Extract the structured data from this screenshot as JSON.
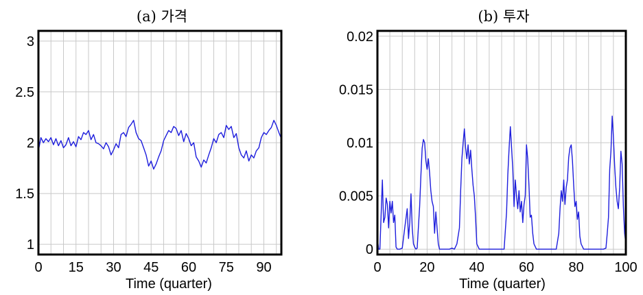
{
  "chart_data": [
    {
      "type": "line",
      "title": "(a) 가격",
      "xlabel": "Time (quarter)",
      "ylabel": "",
      "xlim": [
        0,
        97
      ],
      "ylim": [
        0.9,
        3.1
      ],
      "x_ticks": [
        "0",
        "15",
        "30",
        "45",
        "60",
        "75",
        "90"
      ],
      "y_ticks": [
        "3",
        "2.5",
        "2",
        "1.5",
        "1"
      ],
      "grid": true,
      "series": [
        {
          "color": "#1c1cdc",
          "x": [
            0,
            1,
            2,
            3,
            4,
            5,
            6,
            7,
            8,
            9,
            10,
            11,
            12,
            13,
            14,
            15,
            16,
            17,
            18,
            19,
            20,
            21,
            22,
            23,
            24,
            25,
            26,
            27,
            28,
            29,
            30,
            31,
            32,
            33,
            34,
            35,
            36,
            37,
            38,
            39,
            40,
            41,
            42,
            43,
            44,
            45,
            46,
            47,
            48,
            49,
            50,
            51,
            52,
            53,
            54,
            55,
            56,
            57,
            58,
            59,
            60,
            61,
            62,
            63,
            64,
            65,
            66,
            67,
            68,
            69,
            70,
            71,
            72,
            73,
            74,
            75,
            76,
            77,
            78,
            79,
            80,
            81,
            82,
            83,
            84,
            85,
            86,
            87,
            88,
            89,
            90,
            91,
            92,
            93,
            94,
            95,
            96,
            97
          ],
          "y": [
            1.92,
            2.05,
            2.0,
            2.04,
            2.01,
            2.05,
            1.98,
            2.04,
            1.97,
            2.02,
            1.95,
            1.98,
            2.05,
            1.97,
            2.01,
            1.96,
            2.06,
            2.03,
            2.1,
            2.08,
            2.12,
            2.03,
            2.08,
            2.0,
            1.99,
            1.97,
            1.94,
            2.0,
            1.96,
            1.88,
            1.93,
            1.99,
            1.95,
            2.08,
            2.1,
            2.06,
            2.15,
            2.18,
            2.22,
            2.1,
            2.04,
            2.02,
            1.95,
            1.88,
            1.77,
            1.82,
            1.74,
            1.79,
            1.86,
            1.92,
            2.02,
            2.07,
            2.12,
            2.1,
            2.16,
            2.14,
            2.07,
            2.12,
            2.01,
            2.09,
            2.04,
            1.97,
            2.0,
            1.86,
            1.82,
            1.76,
            1.83,
            1.8,
            1.88,
            1.95,
            2.04,
            2.0,
            2.08,
            2.1,
            2.05,
            2.17,
            2.13,
            2.16,
            2.05,
            2.09,
            1.95,
            1.88,
            1.85,
            1.92,
            1.82,
            1.88,
            1.85,
            1.92,
            1.95,
            2.05,
            2.1,
            2.08,
            2.12,
            2.15,
            2.22,
            2.17,
            2.1,
            2.04
          ]
        }
      ]
    },
    {
      "type": "line",
      "title": "(b) 투자",
      "xlabel": "Time (quarter)",
      "ylabel": "",
      "xlim": [
        0,
        100
      ],
      "ylim": [
        -0.0005,
        0.0205
      ],
      "x_ticks": [
        "0",
        "20",
        "40",
        "60",
        "80",
        "100"
      ],
      "y_ticks": [
        "0.02",
        "0.015",
        "0.01",
        "0.005",
        "0"
      ],
      "grid": true,
      "series": [
        {
          "color": "#1c1cdc",
          "x": [
            0,
            0.5,
            1,
            2,
            2.5,
            3,
            3.5,
            4,
            4.5,
            5,
            5.5,
            6,
            6.5,
            7,
            7.5,
            8,
            9,
            10,
            11,
            12,
            12.5,
            13,
            13.5,
            14,
            14.5,
            15,
            15.5,
            16,
            17,
            17.5,
            18,
            18.5,
            19,
            19.5,
            20,
            20.5,
            21,
            21.5,
            22,
            22.5,
            23,
            23.5,
            24,
            24.5,
            25,
            26,
            28,
            29,
            30,
            31,
            32,
            33,
            33.5,
            34,
            34.5,
            35,
            35.5,
            36,
            36.5,
            37,
            37.5,
            38,
            38.5,
            39,
            39.5,
            40,
            41,
            42,
            44,
            46,
            48,
            50,
            51,
            52,
            52.5,
            53,
            53.5,
            54,
            54.5,
            55,
            55.5,
            56,
            56.5,
            57,
            57.5,
            58,
            58.5,
            59,
            59.5,
            60,
            60.5,
            61,
            61.5,
            62,
            62.5,
            63,
            64,
            66,
            68,
            70,
            72,
            73,
            73.5,
            74,
            74.5,
            75,
            75.5,
            76,
            76.5,
            77,
            77.5,
            78,
            78.5,
            79,
            79.5,
            80,
            80.5,
            81,
            81.5,
            82,
            83,
            85,
            87,
            89,
            91,
            92,
            92.5,
            93,
            93.5,
            94,
            94.5,
            95,
            95.5,
            96,
            96.5,
            97,
            97.5,
            98,
            98.5,
            99,
            99.5,
            100
          ],
          "y": [
            0.001,
            0.0,
            0.0,
            0.0065,
            0.0025,
            0.003,
            0.0048,
            0.0042,
            0.002,
            0.0045,
            0.0034,
            0.0045,
            0.0025,
            0.0032,
            0.0002,
            0.0,
            0.0,
            0.0001,
            0.002,
            0.0038,
            0.001,
            0.0025,
            0.0052,
            0.002,
            0.0005,
            0.0002,
            0.0,
            0.0001,
            0.004,
            0.007,
            0.0095,
            0.0103,
            0.01,
            0.0083,
            0.0075,
            0.0085,
            0.0072,
            0.0055,
            0.0045,
            0.004,
            0.0015,
            0.0035,
            0.002,
            0.0005,
            0.0,
            0.0,
            0.0,
            0.0,
            0.0001,
            0.0,
            0.0005,
            0.002,
            0.0055,
            0.0085,
            0.01,
            0.0113,
            0.0095,
            0.0085,
            0.0098,
            0.008,
            0.0093,
            0.0075,
            0.006,
            0.005,
            0.003,
            0.0005,
            0.0,
            0.0,
            0.0,
            0.0,
            0.0,
            0.0,
            0.0,
            0.0035,
            0.007,
            0.0095,
            0.0115,
            0.0095,
            0.0075,
            0.004,
            0.0065,
            0.005,
            0.0038,
            0.0055,
            0.0035,
            0.0045,
            0.0025,
            0.0042,
            0.005,
            0.0098,
            0.0085,
            0.006,
            0.003,
            0.0032,
            0.0015,
            0.0005,
            0.0,
            0.0,
            0.0,
            0.0,
            0.0,
            0.0015,
            0.0038,
            0.0055,
            0.0045,
            0.0065,
            0.0042,
            0.0058,
            0.0065,
            0.0086,
            0.0095,
            0.0098,
            0.0083,
            0.006,
            0.004,
            0.0045,
            0.0028,
            0.0035,
            0.0012,
            0.0005,
            0.0,
            0.0,
            0.0,
            0.0,
            0.0,
            0.0001,
            0.0015,
            0.003,
            0.0075,
            0.0092,
            0.0125,
            0.0105,
            0.0078,
            0.0058,
            0.0045,
            0.0038,
            0.0058,
            0.0092,
            0.008,
            0.004,
            0.0015,
            0.0005
          ]
        }
      ]
    }
  ]
}
